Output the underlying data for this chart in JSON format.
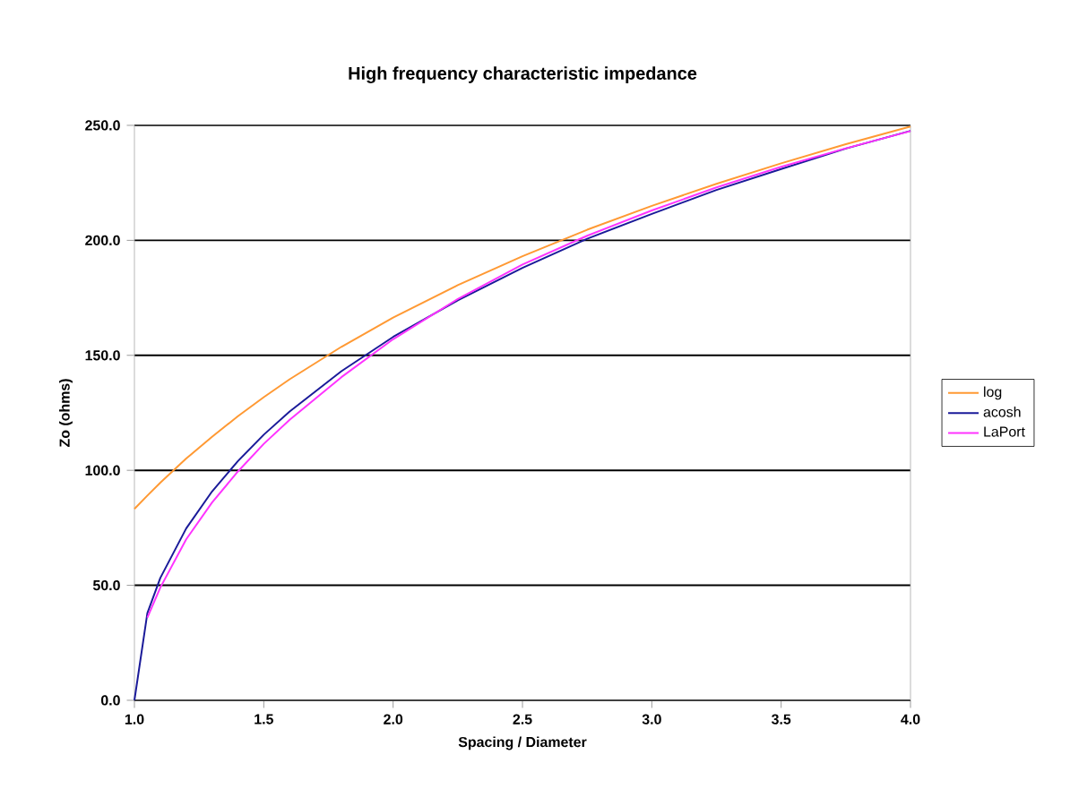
{
  "chart_data": {
    "type": "line",
    "title": "High frequency characteristic impedance",
    "xlabel": "Spacing / Diameter",
    "ylabel": "Zo (ohms)",
    "x": [
      1.0,
      1.05,
      1.1,
      1.2,
      1.3,
      1.4,
      1.5,
      1.6,
      1.8,
      2.0,
      2.25,
      2.5,
      2.75,
      3.0,
      3.25,
      3.5,
      3.75,
      4.0
    ],
    "series": [
      {
        "name": "log",
        "color": "#ff9933",
        "values": [
          83.2,
          89.0,
          94.6,
          105.1,
          114.6,
          123.5,
          131.8,
          139.6,
          153.7,
          166.4,
          180.5,
          193.1,
          204.6,
          215.0,
          224.6,
          233.5,
          241.8,
          249.5
        ]
      },
      {
        "name": "acosh",
        "color": "#1a1a99",
        "values": [
          0,
          37.9,
          53.2,
          74.7,
          90.8,
          104.0,
          115.5,
          125.6,
          143.1,
          158.0,
          173.9,
          188.0,
          200.7,
          211.5,
          221.9,
          231.0,
          239.9,
          247.6
        ]
      },
      {
        "name": "LaPort",
        "color": "#ff33ff",
        "values": [
          null,
          36,
          49,
          70,
          86,
          99.5,
          111.5,
          122,
          140.5,
          157,
          174.5,
          189.5,
          202,
          213,
          223,
          232,
          240,
          247.5
        ]
      }
    ],
    "xlim": [
      1.0,
      4.0
    ],
    "ylim": [
      0,
      250
    ],
    "xticks": [
      {
        "value": 1.0,
        "label": "1.0"
      },
      {
        "value": 1.5,
        "label": "1.5"
      },
      {
        "value": 2.0,
        "label": "2.0"
      },
      {
        "value": 2.5,
        "label": "2.5"
      },
      {
        "value": 3.0,
        "label": "3.0"
      },
      {
        "value": 3.5,
        "label": "3.5"
      },
      {
        "value": 4.0,
        "label": "4.0"
      }
    ],
    "yticks": [
      {
        "value": 0,
        "label": "0.0"
      },
      {
        "value": 50,
        "label": "50.0"
      },
      {
        "value": 100,
        "label": "100.0"
      },
      {
        "value": 150,
        "label": "150.0"
      },
      {
        "value": 200,
        "label": "200.0"
      },
      {
        "value": 250,
        "label": "250.0"
      }
    ],
    "grid": "y",
    "legend": "right",
    "marker": "none",
    "line_style": "solid"
  }
}
